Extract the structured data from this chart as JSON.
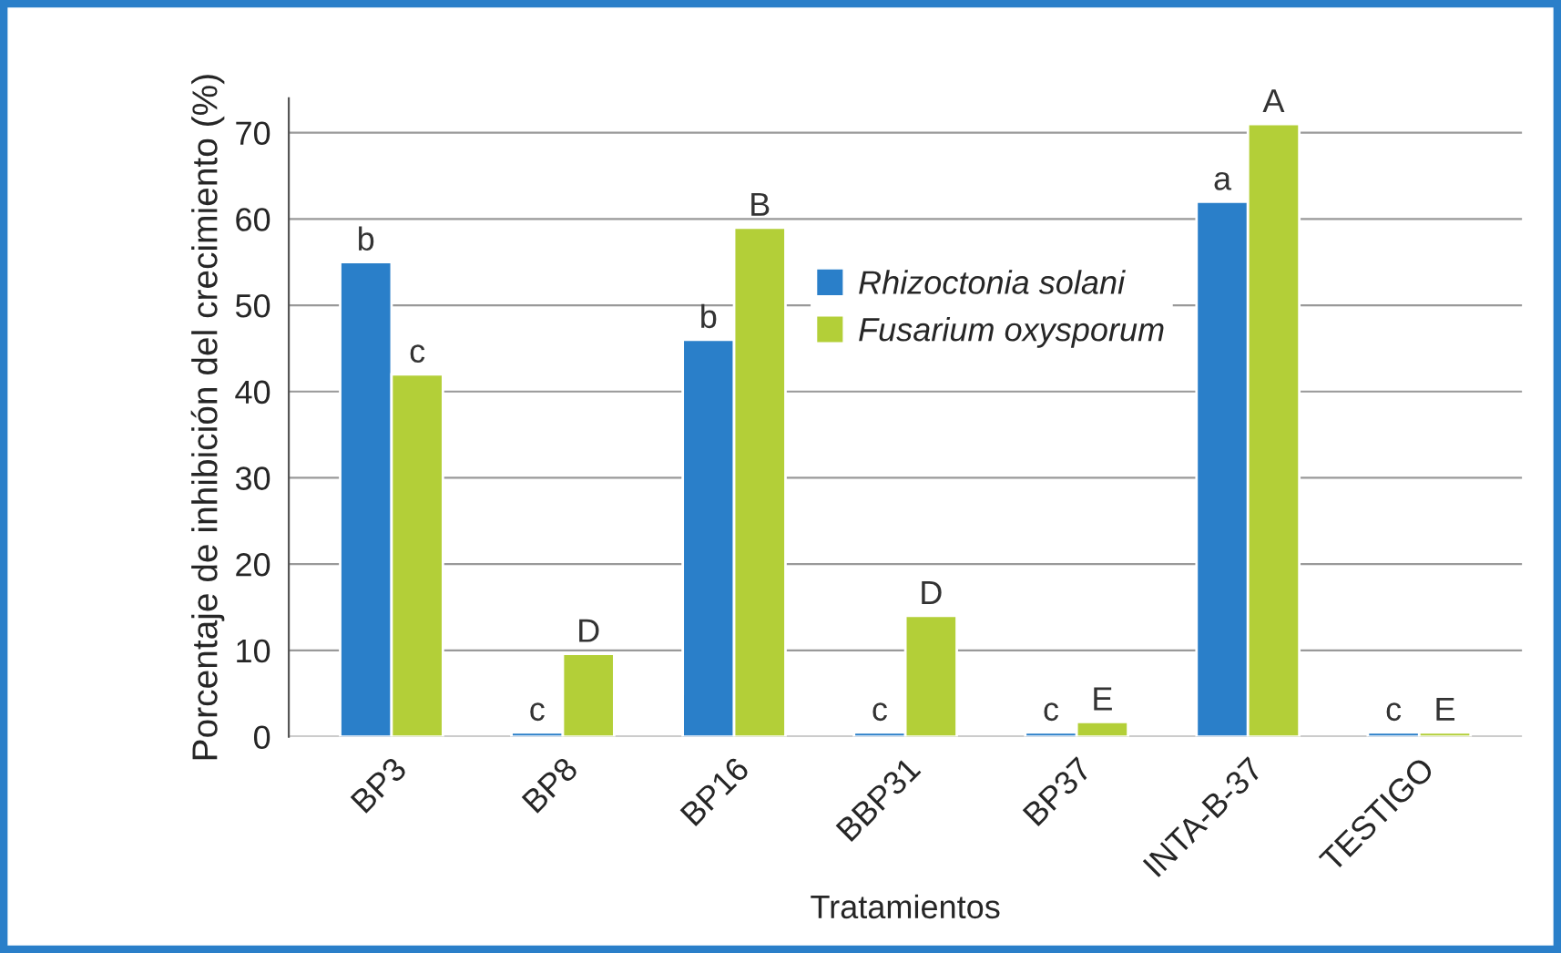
{
  "chart_data": {
    "type": "bar",
    "categories": [
      "BP3",
      "BP8",
      "BP16",
      "BBP31",
      "BP37",
      "INTA-B-37",
      "TESTIGO"
    ],
    "series": [
      {
        "name": "Rhizoctonia solani",
        "color": "#2a7fc9",
        "values": [
          55,
          0.5,
          46,
          0.5,
          0.5,
          62,
          0.5
        ],
        "value_labels": [
          "b",
          "c",
          "b",
          "c",
          "c",
          "a",
          "c"
        ]
      },
      {
        "name": "Fusarium oxysporum",
        "color": "#b3cf38",
        "values": [
          42,
          9.6,
          59,
          14,
          1.7,
          71,
          0.5
        ],
        "value_labels": [
          "c",
          "D",
          "B",
          "D",
          "E",
          "A",
          "E"
        ]
      }
    ],
    "xlabel": "Tratamientos",
    "ylabel": "Porcentaje de inhibición del crecimiento (%)",
    "ylim": [
      0,
      74
    ],
    "yticks": [
      0,
      10,
      20,
      30,
      40,
      50,
      60,
      70
    ],
    "grid": "y",
    "legend": "center"
  }
}
